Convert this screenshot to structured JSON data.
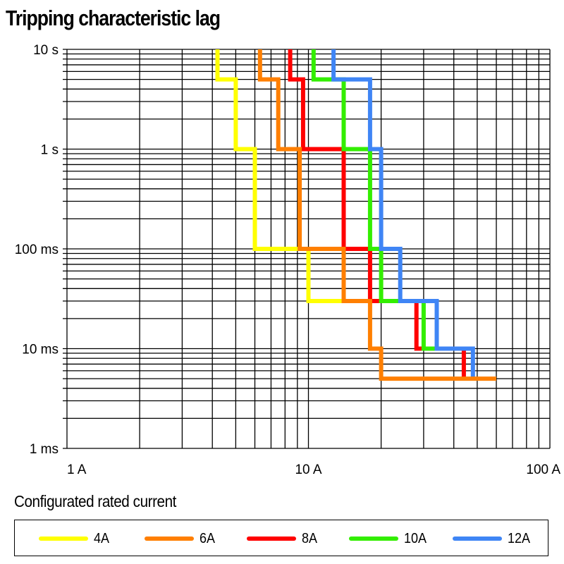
{
  "chart_data": {
    "type": "line",
    "title": "Tripping characteristic lag",
    "xscale": "log",
    "yscale": "log",
    "xlim": [
      1,
      100
    ],
    "ylim": [
      0.001,
      10
    ],
    "x_unit": "A",
    "y_unit": "s",
    "grid": true,
    "x_ticks": [
      {
        "value": 1,
        "label": "1 A"
      },
      {
        "value": 10,
        "label": "10 A"
      },
      {
        "value": 100,
        "label": "100 A"
      }
    ],
    "y_ticks": [
      {
        "value": 10,
        "label": "10 s"
      },
      {
        "value": 1,
        "label": "1 s"
      },
      {
        "value": 0.1,
        "label": "100 ms"
      },
      {
        "value": 0.01,
        "label": "10 ms"
      },
      {
        "value": 0.001,
        "label": "1 ms"
      }
    ],
    "legend_title": "Configurated rated current",
    "legend_position": "bottom",
    "series": [
      {
        "name": "4A",
        "color": "#ffff00",
        "points": [
          [
            4.2,
            10
          ],
          [
            4.2,
            5
          ],
          [
            5,
            5
          ],
          [
            5,
            1
          ],
          [
            6,
            1
          ],
          [
            6,
            0.1
          ],
          [
            10,
            0.1
          ],
          [
            10,
            0.03
          ],
          [
            14,
            0.03
          ]
        ]
      },
      {
        "name": "6A",
        "color": "#ff7f00",
        "points": [
          [
            6.3,
            10
          ],
          [
            6.3,
            5
          ],
          [
            7.5,
            5
          ],
          [
            7.5,
            1
          ],
          [
            9.2,
            1
          ],
          [
            9.2,
            0.1
          ],
          [
            14,
            0.1
          ],
          [
            14,
            0.03
          ],
          [
            18,
            0.03
          ],
          [
            18,
            0.01
          ],
          [
            20,
            0.01
          ],
          [
            20,
            0.005
          ],
          [
            60,
            0.005
          ]
        ]
      },
      {
        "name": "8A",
        "color": "#ff0000",
        "points": [
          [
            8.4,
            10
          ],
          [
            8.4,
            5
          ],
          [
            9.5,
            5
          ],
          [
            9.5,
            1
          ],
          [
            14,
            1
          ],
          [
            14,
            0.1
          ],
          [
            18,
            0.1
          ],
          [
            18,
            0.03
          ],
          [
            28,
            0.03
          ],
          [
            28,
            0.01
          ],
          [
            44,
            0.01
          ],
          [
            44,
            0.005
          ]
        ]
      },
      {
        "name": "10A",
        "color": "#33ee00",
        "points": [
          [
            10.5,
            10
          ],
          [
            10.5,
            5
          ],
          [
            14,
            5
          ],
          [
            14,
            1
          ],
          [
            18,
            1
          ],
          [
            18,
            0.1
          ],
          [
            20,
            0.1
          ],
          [
            20,
            0.03
          ],
          [
            30,
            0.03
          ],
          [
            30,
            0.01
          ],
          [
            34,
            0.01
          ]
        ]
      },
      {
        "name": "12A",
        "color": "#3f85f5",
        "points": [
          [
            12.7,
            10
          ],
          [
            12.7,
            5
          ],
          [
            18,
            5
          ],
          [
            18,
            1
          ],
          [
            20,
            1
          ],
          [
            20,
            0.1
          ],
          [
            24,
            0.1
          ],
          [
            24,
            0.03
          ],
          [
            34,
            0.03
          ],
          [
            34,
            0.01
          ],
          [
            48,
            0.01
          ],
          [
            48,
            0.005
          ]
        ]
      }
    ]
  }
}
